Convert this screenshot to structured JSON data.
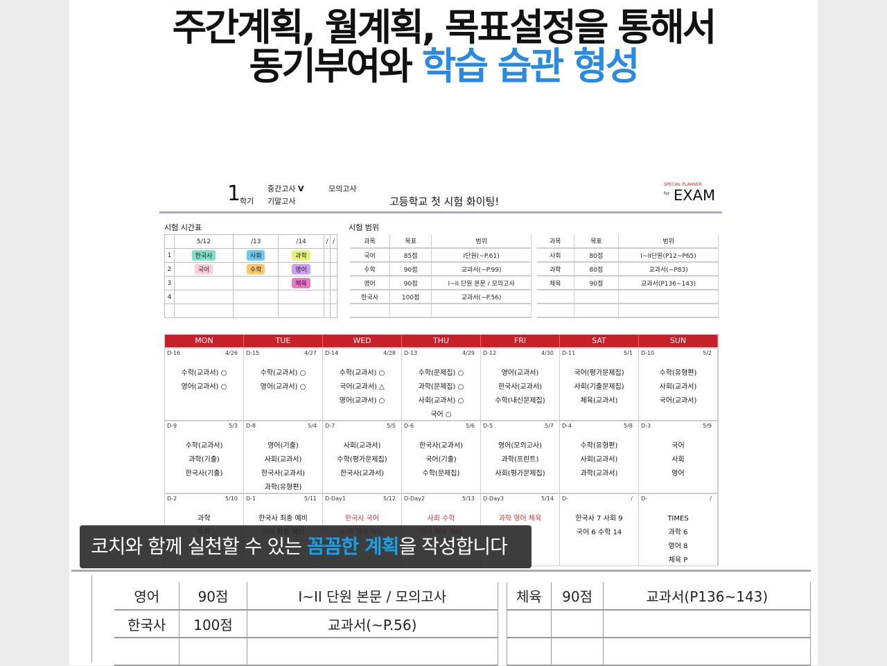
{
  "headline": {
    "line1": "주간계획, 월계획, 목표설정을 통해서",
    "line2_plain": "동기부여와 ",
    "line2_highlight": "학습 습관 형성",
    "highlight_color": "#2a8ae0"
  },
  "planner": {
    "semester": "1",
    "semester_label": "학기",
    "exam_midterm": "중간고사",
    "check": "V",
    "exam_final": "기말고사",
    "exam_mock": "모의고사",
    "motto": "고등학교 첫 시험 화이팅!",
    "brand_small": "SPECIAL PLANNER",
    "brand_for": "for",
    "brand": "EXAM",
    "timetable": {
      "title": "시험 시간표",
      "dates": [
        "5/12",
        "/13",
        "/14",
        "/",
        "/"
      ],
      "rows": [
        [
          "1",
          "한국사",
          "사회",
          "과학",
          "",
          ""
        ],
        [
          "2",
          "국어",
          "수학",
          "영어",
          "",
          ""
        ],
        [
          "3",
          "",
          "",
          "체육",
          "",
          ""
        ],
        [
          "4",
          "",
          "",
          "",
          "",
          ""
        ],
        [
          "",
          "",
          "",
          "",
          "",
          ""
        ]
      ]
    },
    "range": {
      "title": "시험 범위",
      "headers": [
        "과목",
        "목표",
        "범위"
      ],
      "left": [
        [
          "국어",
          "85점",
          "I단원(~P.61)"
        ],
        [
          "수학",
          "90점",
          "교과서(~P.99)"
        ],
        [
          "영어",
          "90점",
          "I~II 단원 본문 / 모의고사"
        ],
        [
          "한국사",
          "100점",
          "교과서(~P.56)"
        ],
        [
          "",
          "",
          ""
        ]
      ],
      "right": [
        [
          "사회",
          "80점",
          "I~II단원(P12~P65)"
        ],
        [
          "과학",
          "80점",
          "교과서(~P83)"
        ],
        [
          "체육",
          "90점",
          "교과서(P136~143)"
        ],
        [
          "",
          "",
          ""
        ],
        [
          "",
          "",
          ""
        ]
      ]
    },
    "days": [
      "MON",
      "TUE",
      "WED",
      "THU",
      "FRI",
      "SAT",
      "SUN"
    ],
    "calendar": [
      {
        "dday": "D-16",
        "date": "4/26",
        "items": [
          "수학(교과서) ○",
          "영어(교과서) ○"
        ]
      },
      {
        "dday": "D-15",
        "date": "4/27",
        "items": [
          "수학(교과서) ○",
          "영어(교과서) ○"
        ]
      },
      {
        "dday": "D-14",
        "date": "4/28",
        "items": [
          "수학(교과서) ○",
          "국어(교과서) △",
          "영어(교과서) ○"
        ]
      },
      {
        "dday": "D-13",
        "date": "4/29",
        "items": [
          "수학(문제집) ○",
          "과학(문제집) ○",
          "사회(교과서) ○",
          "국어 ○"
        ]
      },
      {
        "dday": "D-12",
        "date": "4/30",
        "items": [
          "영어(교과서)",
          "한국사(교과서)",
          "수학(내신문제집)"
        ]
      },
      {
        "dday": "D-11",
        "date": "5/1",
        "items": [
          "국어(평가문제집)",
          "사회(기출문제집)",
          "체육(교과서)"
        ]
      },
      {
        "dday": "D-10",
        "date": "5/2",
        "items": [
          "수학(유형편)",
          "사회(교과서)",
          "국어(교과서)"
        ]
      },
      {
        "dday": "D-9",
        "date": "5/3",
        "items": [
          "수학(교과서)",
          "과학(기출)",
          "한국사(기출)"
        ]
      },
      {
        "dday": "D-8",
        "date": "5/4",
        "items": [
          "영어(기출)",
          "사회(교과서)",
          "한국사(교과서)",
          "과학(유형편)"
        ]
      },
      {
        "dday": "D-7",
        "date": "5/5",
        "items": [
          "사회(교과서)",
          "수학(평가문제집)",
          "한국사(교과서)"
        ]
      },
      {
        "dday": "D-6",
        "date": "5/6",
        "items": [
          "한국사(교과서)",
          "국어(기출)",
          "수학(문제집)"
        ]
      },
      {
        "dday": "D-5",
        "date": "5/7",
        "items": [
          "영어(모의고사)",
          "과학(프린트)",
          "사회(평가문제집)"
        ]
      },
      {
        "dday": "D-4",
        "date": "5/8",
        "items": [
          "수학(유형편)",
          "사회(교과서)",
          "과학(교과서)"
        ]
      },
      {
        "dday": "D-3",
        "date": "5/9",
        "items": [
          "국어",
          "사회",
          "영어"
        ]
      },
      {
        "dday": "D-2",
        "date": "5/10",
        "items": [
          "과학",
          "수학"
        ]
      },
      {
        "dday": "D-1",
        "date": "5/11",
        "items": [
          "한국사 최종 예비",
          "국어 최종 예비"
        ]
      },
      {
        "dday": "D-Day1",
        "date": "5/12",
        "items": [
          "한국사 국어",
          "사회 과학 예비"
        ],
        "red": true
      },
      {
        "dday": "D-Day2",
        "date": "5/13",
        "items": [
          "사회 수학",
          "영어 체육 예비"
        ],
        "red": true
      },
      {
        "dday": "D-Day3",
        "date": "5/14",
        "items": [
          "과학 영어 체육"
        ],
        "red": true
      },
      {
        "dday": "D-",
        "date": "/",
        "items": [
          "한국사 7  사회 9",
          "국어 6  수학 14"
        ]
      },
      {
        "dday": "D-",
        "date": "/",
        "items": [
          "TIMES",
          "과학 6",
          "영어 8",
          "체육 P"
        ]
      }
    ],
    "caption": {
      "before": "코치와 함께 실천할 수 있는 ",
      "highlight": "꼼꼼한 계획",
      "after": "을 작성합니다",
      "highlight_color": "#1aa0e8"
    },
    "zoomed_rows": [
      [
        "영어",
        "90점",
        "I~II 단원 본문 / 모의고사",
        "체육",
        "90점",
        "교과서(P136~143)"
      ],
      [
        "한국사",
        "100점",
        "교과서(~P.56)",
        "",
        "",
        ""
      ]
    ]
  }
}
